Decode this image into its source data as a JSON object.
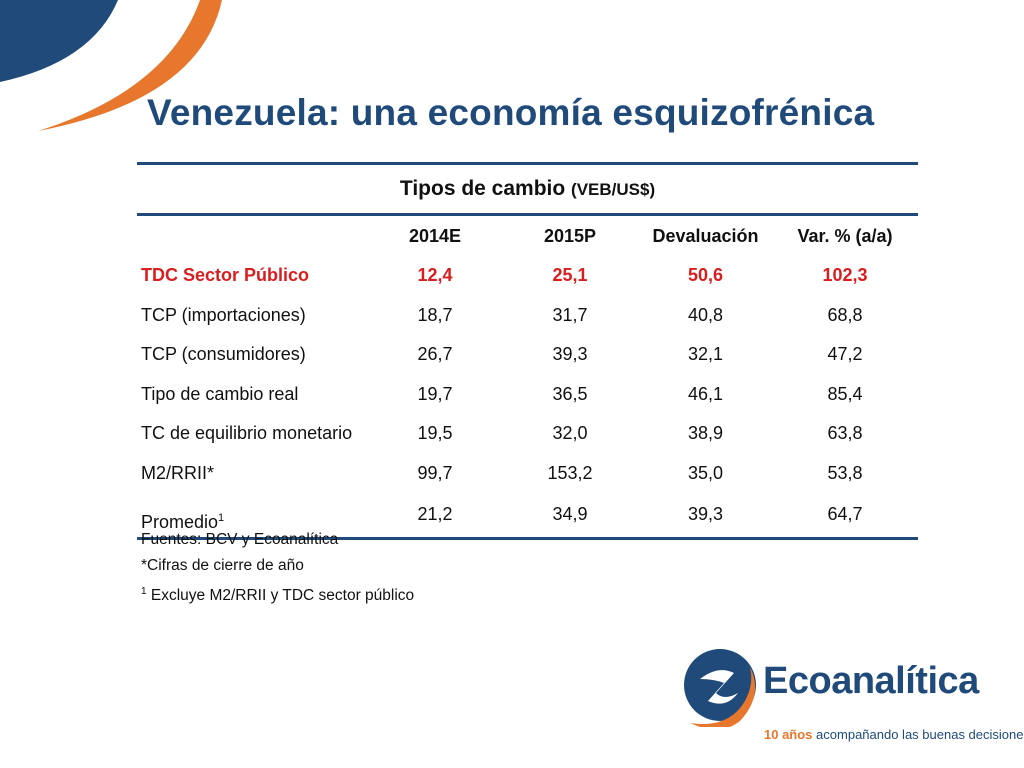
{
  "slide": {
    "title": "Venezuela: una economía esquizofrénica",
    "colors": {
      "navy": "#1f4a7a",
      "orange": "#e8772e",
      "highlight_red": "#d81e1e"
    }
  },
  "table": {
    "caption": "Tipos de cambio",
    "caption_unit": "(VEB/US$)",
    "headers": [
      "",
      "2014E",
      "2015P",
      "Devaluación",
      "Var. % (a/a)"
    ],
    "rows": [
      {
        "label": "TDC Sector Público",
        "values": [
          "12,4",
          "25,1",
          "50,6",
          "102,3"
        ],
        "highlight": true
      },
      {
        "label": "TCP (importaciones)",
        "values": [
          "18,7",
          "31,7",
          "40,8",
          "68,8"
        ]
      },
      {
        "label": "TCP (consumidores)",
        "values": [
          "26,7",
          "39,3",
          "32,1",
          "47,2"
        ]
      },
      {
        "label": "Tipo de cambio real",
        "values": [
          "19,7",
          "36,5",
          "46,1",
          "85,4"
        ]
      },
      {
        "label": "TC de equilibrio monetario",
        "values": [
          "19,5",
          "32,0",
          "38,9",
          "63,8"
        ]
      },
      {
        "label": "M2/RRII*",
        "values": [
          "99,7",
          "153,2",
          "35,0",
          "53,8"
        ]
      },
      {
        "label": "Promedio",
        "label_sup": "1",
        "values": [
          "21,2",
          "34,9",
          "39,3",
          "64,7"
        ]
      }
    ]
  },
  "notes": {
    "sources": "Fuentes: BCV y Ecoanalítica",
    "asterisk": "*Cifras de cierre de año",
    "footnote_mark": "1",
    "footnote": "Excluye M2/RRII y TDC sector público"
  },
  "logo": {
    "name": "Ecoanalítica",
    "tagline_accent": "10 años",
    "tagline_rest": "acompañando las buenas decisiones"
  }
}
